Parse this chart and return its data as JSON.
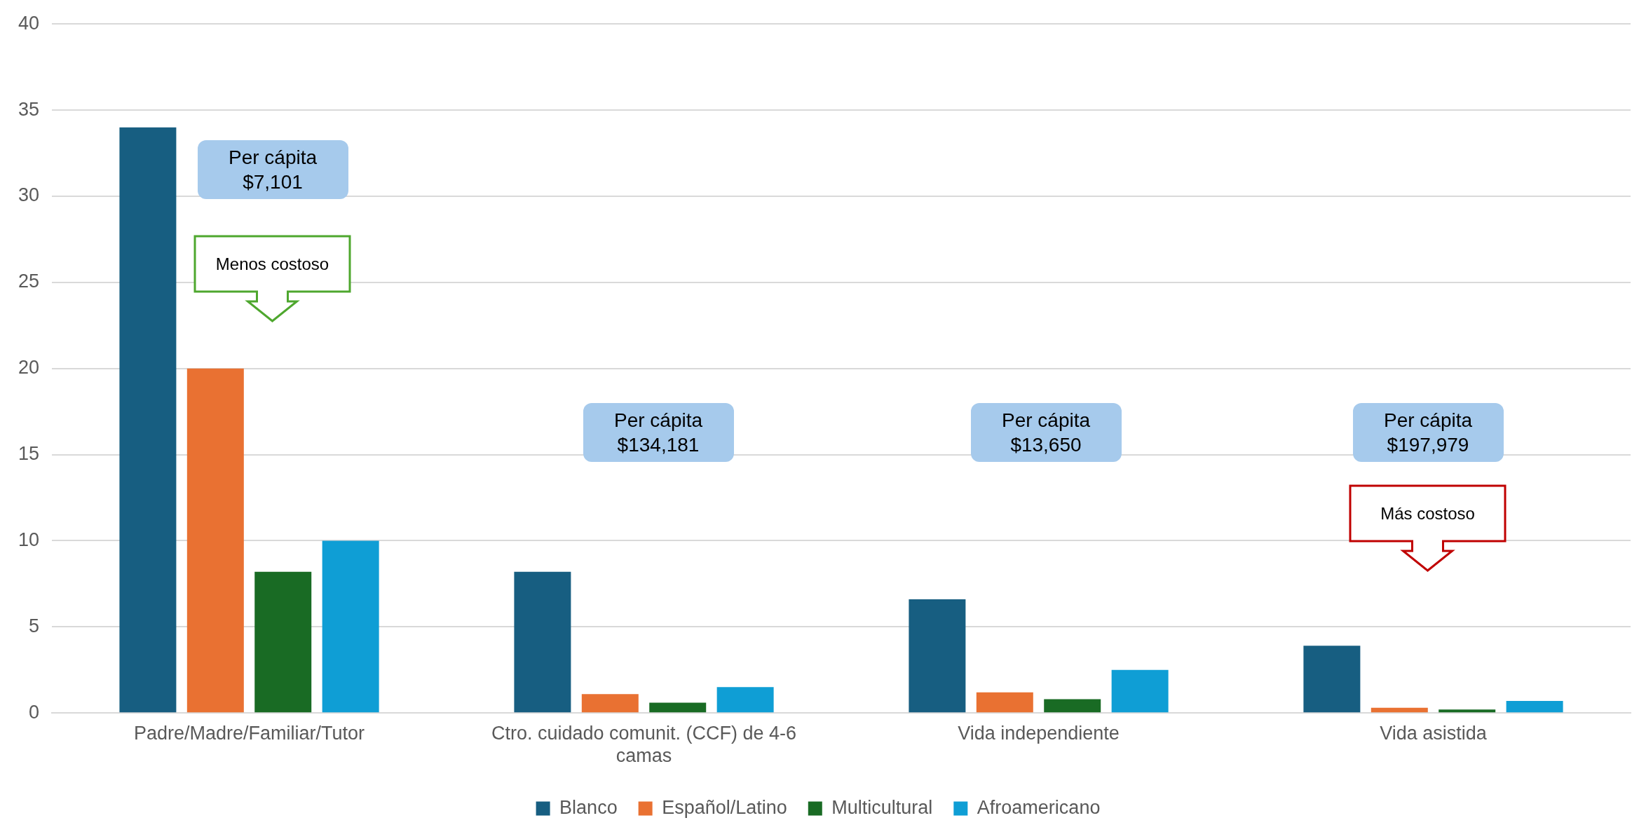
{
  "chart_data": {
    "type": "bar",
    "categories": [
      "Padre/Madre/Familiar/Tutor",
      "Ctro. cuidado comunit. (CCF) de 4-6 camas",
      "Vida independiente",
      "Vida asistida"
    ],
    "series": [
      {
        "name": "Blanco",
        "color": "#175e81",
        "values": [
          34,
          8.2,
          6.6,
          3.9
        ]
      },
      {
        "name": "Español/Latino",
        "color": "#e97132",
        "values": [
          20,
          1.1,
          1.2,
          0.3
        ]
      },
      {
        "name": "Multicultural",
        "color": "#196b24",
        "values": [
          8.2,
          0.6,
          0.8,
          0.2
        ]
      },
      {
        "name": "Afroamericano",
        "color": "#0f9ed5",
        "values": [
          10,
          1.5,
          2.5,
          0.7
        ]
      }
    ],
    "ylim": [
      0,
      40
    ],
    "yticks": [
      0,
      5,
      10,
      15,
      20,
      25,
      30,
      35,
      40
    ],
    "grid": "y",
    "legend": "bottom",
    "annotations": [
      "Per cápita\n$7,101",
      "Per cápita\n$134,181",
      "Per cápita\n$13,650",
      "Per cápita\n$197,979",
      "Menos costoso",
      "Más costoso"
    ]
  }
}
